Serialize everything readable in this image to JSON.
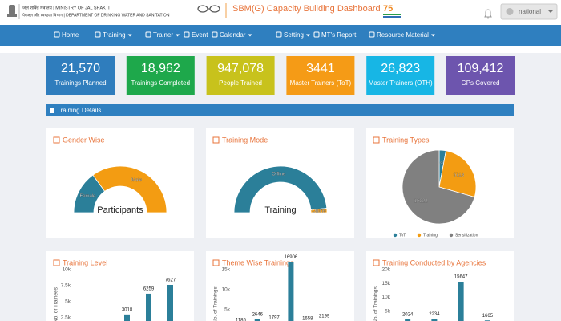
{
  "header": {
    "ministry": "जल शक्ति मंत्रालय | MINISTRY OF JAL SHAKTI",
    "department": "पेयजल और स्वच्छता विभाग | DEPARTMENT OF DRINKING WATER AND SANITATION",
    "title": "SBM(G) Capacity Building Dashboard",
    "user": "national"
  },
  "nav": [
    {
      "label": "Home",
      "dropdown": false
    },
    {
      "label": "Training",
      "dropdown": true
    },
    {
      "label": "Trainer",
      "dropdown": true
    },
    {
      "label": "Event",
      "dropdown": false
    },
    {
      "label": "Calendar",
      "dropdown": true
    },
    {
      "label": "Setting",
      "dropdown": true
    },
    {
      "label": "MT's Report",
      "dropdown": false
    },
    {
      "label": "Resource Material",
      "dropdown": true
    }
  ],
  "stats": [
    {
      "value": "21,570",
      "label": "Trainings Planned",
      "color": "#2f7dbd"
    },
    {
      "value": "18,962",
      "label": "Trainings Completed",
      "color": "#1ea84b"
    },
    {
      "value": "947,078",
      "label": "People Trained",
      "color": "#c8c21c"
    },
    {
      "value": "3441",
      "label": "Master Trainers (ToT)",
      "color": "#f59b16"
    },
    {
      "value": "26,823",
      "label": "Master Trainers (OTH)",
      "color": "#17b6e5"
    },
    {
      "value": "109,412",
      "label": "GPs Covered",
      "color": "#6d55ae"
    }
  ],
  "section_title": "Training Details",
  "panels": [
    {
      "type": "gauge",
      "title": "Gender Wise",
      "center_label": "Participants",
      "series": [
        {
          "name": "Female",
          "color": "#2b7f99",
          "value": 30
        },
        {
          "name": "Male",
          "color": "#f39c12",
          "value": 70
        }
      ]
    },
    {
      "type": "gauge",
      "title": "Training Mode",
      "center_label": "Training",
      "series": [
        {
          "name": "Offline",
          "color": "#2b7f99",
          "value": 97
        },
        {
          "name": "Online",
          "color": "#f39c12",
          "value": 3
        }
      ]
    },
    {
      "type": "pie",
      "title": "Training Types",
      "legend": true,
      "series": [
        {
          "name": "ToT",
          "color": "#2b7f99",
          "value": 635
        },
        {
          "name": "Training",
          "color": "#f39c12",
          "value": 5713
        },
        {
          "name": "Sensitization",
          "color": "#808080",
          "value": 15222
        }
      ]
    },
    {
      "type": "bar",
      "title": "Training Level",
      "y_label": "No. of Trainees",
      "color": "#2b7f99",
      "categories": [
        null,
        null,
        null
      ],
      "values": [
        3018,
        6259,
        7627
      ],
      "ylim": [
        0,
        10000
      ],
      "yticks": [
        {
          "value": 2500,
          "label": "2.5k"
        },
        {
          "value": 5000,
          "label": "5k"
        },
        {
          "value": 7500,
          "label": "7.5k"
        },
        {
          "value": 10000,
          "label": "10k"
        }
      ]
    },
    {
      "type": "bar",
      "title": "Theme Wise Trainings",
      "y_label": "No. of Trainings",
      "color": "#2b7f99",
      "categories": [
        null,
        null,
        null,
        null,
        null,
        null
      ],
      "values": [
        1185,
        2646,
        1797,
        16906,
        1658,
        2199
      ],
      "ylim": [
        0,
        15000
      ],
      "yticks": [
        {
          "value": 5000,
          "label": "5k"
        },
        {
          "value": 10000,
          "label": "10k"
        },
        {
          "value": 15000,
          "label": "15k"
        }
      ]
    },
    {
      "type": "bar",
      "title": "Training Conducted by Agencies",
      "y_label": "No. of Trainings",
      "color": "#2b7f99",
      "categories": [
        null,
        null,
        null,
        null
      ],
      "values": [
        2024,
        2234,
        15647,
        1665
      ],
      "ylim": [
        0,
        20000
      ],
      "yticks": [
        {
          "value": 5000,
          "label": "5k"
        },
        {
          "value": 10000,
          "label": "10k"
        },
        {
          "value": 15000,
          "label": "15k"
        },
        {
          "value": 20000,
          "label": "20k"
        }
      ]
    }
  ]
}
